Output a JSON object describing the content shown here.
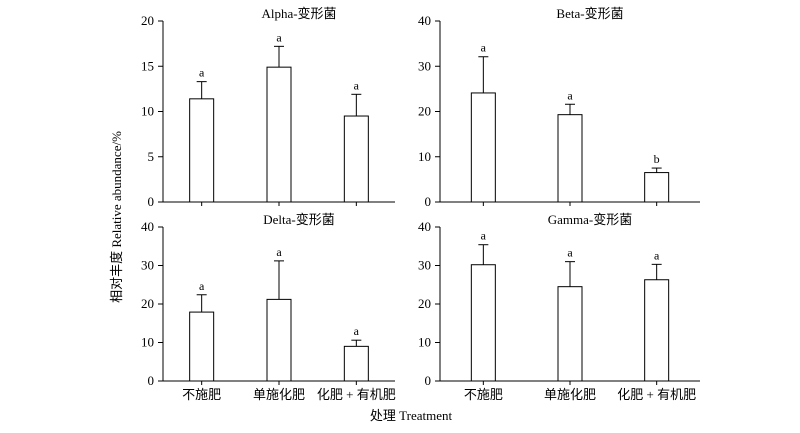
{
  "y_axis_label": "相对丰度 Relative abundance/%",
  "x_axis_label": "处理 Treatment",
  "chart_data": [
    {
      "type": "bar",
      "title": "Alpha-变形菌",
      "categories": [
        "不施肥",
        "单施化肥",
        "化肥 + 有机肥"
      ],
      "values": [
        11.4,
        14.9,
        9.5
      ],
      "errors": [
        1.9,
        2.3,
        2.4
      ],
      "significance": [
        "a",
        "a",
        "a"
      ],
      "ylim": [
        0,
        20
      ],
      "yticks": [
        0,
        5,
        10,
        15,
        20
      ],
      "show_x_tick_labels": false
    },
    {
      "type": "bar",
      "title": "Beta-变形菌",
      "categories": [
        "不施肥",
        "单施化肥",
        "化肥 + 有机肥"
      ],
      "values": [
        24.1,
        19.3,
        6.5
      ],
      "errors": [
        8.0,
        2.3,
        1.0
      ],
      "significance": [
        "a",
        "a",
        "b"
      ],
      "ylim": [
        0,
        40
      ],
      "yticks": [
        0,
        10,
        20,
        30,
        40
      ],
      "show_x_tick_labels": false
    },
    {
      "type": "bar",
      "title": "Delta-变形菌",
      "categories": [
        "不施肥",
        "单施化肥",
        "化肥 + 有机肥"
      ],
      "values": [
        17.9,
        21.2,
        9.0
      ],
      "errors": [
        4.5,
        10.0,
        1.6
      ],
      "significance": [
        "a",
        "a",
        "a"
      ],
      "ylim": [
        0,
        40
      ],
      "yticks": [
        0,
        10,
        20,
        30,
        40
      ],
      "show_x_tick_labels": true
    },
    {
      "type": "bar",
      "title": "Gamma-变形菌",
      "categories": [
        "不施肥",
        "单施化肥",
        "化肥 + 有机肥"
      ],
      "values": [
        30.2,
        24.5,
        26.3
      ],
      "errors": [
        5.2,
        6.5,
        4.0
      ],
      "significance": [
        "a",
        "a",
        "a"
      ],
      "ylim": [
        0,
        40
      ],
      "yticks": [
        0,
        10,
        20,
        30,
        40
      ],
      "show_x_tick_labels": true
    }
  ]
}
